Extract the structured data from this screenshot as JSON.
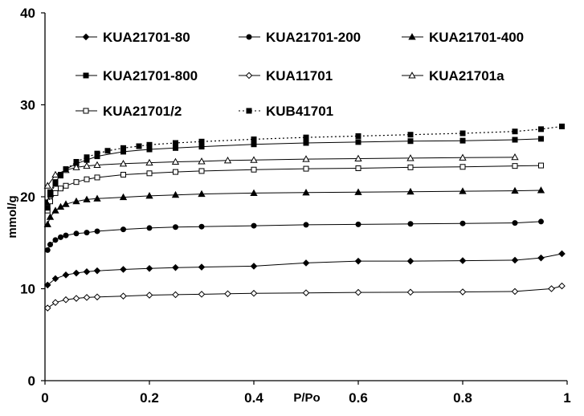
{
  "chart_data": {
    "type": "line",
    "title": "",
    "xlabel": "P/Po",
    "ylabel": "mmol/g",
    "xlim": [
      0,
      1
    ],
    "ylim": [
      0,
      40
    ],
    "x_ticks": [
      0,
      0.2,
      0.4,
      0.6,
      0.8,
      1
    ],
    "y_ticks": [
      0,
      10,
      20,
      30,
      40
    ],
    "x_tick_labels": [
      "0",
      "0.2",
      "0.4",
      "0.6",
      "0.8",
      "1"
    ],
    "y_tick_labels": [
      "0",
      "10",
      "20",
      "30",
      "40"
    ],
    "grid": false,
    "legend_position": "top",
    "series": [
      {
        "name": "KUA21701-80",
        "marker": "diamond-filled",
        "dash": "solid",
        "points": [
          [
            0.005,
            10.4
          ],
          [
            0.02,
            11.1
          ],
          [
            0.04,
            11.5
          ],
          [
            0.06,
            11.7
          ],
          [
            0.08,
            11.85
          ],
          [
            0.1,
            11.95
          ],
          [
            0.15,
            12.1
          ],
          [
            0.2,
            12.2
          ],
          [
            0.25,
            12.3
          ],
          [
            0.3,
            12.35
          ],
          [
            0.4,
            12.45
          ],
          [
            0.5,
            12.8
          ],
          [
            0.6,
            13.0
          ],
          [
            0.7,
            13.0
          ],
          [
            0.8,
            13.05
          ],
          [
            0.9,
            13.1
          ],
          [
            0.95,
            13.35
          ],
          [
            0.99,
            13.8
          ]
        ]
      },
      {
        "name": "KUA21701-200",
        "marker": "circle-filled",
        "dash": "solid",
        "points": [
          [
            0.005,
            14.2
          ],
          [
            0.01,
            14.8
          ],
          [
            0.02,
            15.3
          ],
          [
            0.03,
            15.6
          ],
          [
            0.04,
            15.8
          ],
          [
            0.06,
            16.0
          ],
          [
            0.08,
            16.1
          ],
          [
            0.1,
            16.25
          ],
          [
            0.15,
            16.45
          ],
          [
            0.2,
            16.6
          ],
          [
            0.25,
            16.7
          ],
          [
            0.3,
            16.75
          ],
          [
            0.4,
            16.85
          ],
          [
            0.5,
            16.95
          ],
          [
            0.6,
            17.0
          ],
          [
            0.7,
            17.05
          ],
          [
            0.8,
            17.1
          ],
          [
            0.9,
            17.15
          ],
          [
            0.95,
            17.3
          ]
        ]
      },
      {
        "name": "KUA21701-400",
        "marker": "triangle-filled",
        "dash": "solid",
        "points": [
          [
            0.005,
            17.0
          ],
          [
            0.01,
            17.8
          ],
          [
            0.02,
            18.5
          ],
          [
            0.03,
            18.9
          ],
          [
            0.04,
            19.2
          ],
          [
            0.06,
            19.5
          ],
          [
            0.08,
            19.7
          ],
          [
            0.1,
            19.8
          ],
          [
            0.15,
            19.95
          ],
          [
            0.2,
            20.1
          ],
          [
            0.25,
            20.2
          ],
          [
            0.3,
            20.3
          ],
          [
            0.4,
            20.4
          ],
          [
            0.5,
            20.45
          ],
          [
            0.6,
            20.5
          ],
          [
            0.7,
            20.55
          ],
          [
            0.8,
            20.6
          ],
          [
            0.9,
            20.65
          ],
          [
            0.95,
            20.7
          ]
        ]
      },
      {
        "name": "KUA21701-800",
        "marker": "square-filled",
        "dash": "solid",
        "points": [
          [
            0.005,
            19.4
          ],
          [
            0.01,
            20.5
          ],
          [
            0.02,
            21.6
          ],
          [
            0.03,
            22.4
          ],
          [
            0.04,
            23.0
          ],
          [
            0.06,
            23.6
          ],
          [
            0.08,
            24.0
          ],
          [
            0.1,
            24.4
          ],
          [
            0.15,
            24.9
          ],
          [
            0.2,
            25.15
          ],
          [
            0.25,
            25.3
          ],
          [
            0.3,
            25.45
          ],
          [
            0.4,
            25.7
          ],
          [
            0.5,
            25.85
          ],
          [
            0.6,
            25.95
          ],
          [
            0.7,
            26.05
          ],
          [
            0.8,
            26.1
          ],
          [
            0.9,
            26.2
          ],
          [
            0.95,
            26.3
          ]
        ]
      },
      {
        "name": "KUA11701",
        "marker": "diamond-open",
        "dash": "solid",
        "points": [
          [
            0.005,
            7.9
          ],
          [
            0.02,
            8.5
          ],
          [
            0.04,
            8.8
          ],
          [
            0.06,
            8.95
          ],
          [
            0.08,
            9.05
          ],
          [
            0.1,
            9.1
          ],
          [
            0.15,
            9.2
          ],
          [
            0.2,
            9.3
          ],
          [
            0.25,
            9.35
          ],
          [
            0.3,
            9.4
          ],
          [
            0.35,
            9.45
          ],
          [
            0.4,
            9.5
          ],
          [
            0.5,
            9.55
          ],
          [
            0.6,
            9.6
          ],
          [
            0.7,
            9.62
          ],
          [
            0.8,
            9.65
          ],
          [
            0.9,
            9.7
          ],
          [
            0.97,
            10.0
          ],
          [
            0.99,
            10.3
          ]
        ]
      },
      {
        "name": "KUA21701a",
        "marker": "triangle-open",
        "dash": "solid",
        "points": [
          [
            0.005,
            21.2
          ],
          [
            0.02,
            22.4
          ],
          [
            0.04,
            22.9
          ],
          [
            0.06,
            23.2
          ],
          [
            0.08,
            23.35
          ],
          [
            0.1,
            23.45
          ],
          [
            0.15,
            23.6
          ],
          [
            0.2,
            23.7
          ],
          [
            0.25,
            23.8
          ],
          [
            0.3,
            23.85
          ],
          [
            0.35,
            23.95
          ],
          [
            0.4,
            24.0
          ],
          [
            0.5,
            24.1
          ],
          [
            0.6,
            24.15
          ],
          [
            0.7,
            24.2
          ],
          [
            0.8,
            24.25
          ],
          [
            0.9,
            24.3
          ]
        ]
      },
      {
        "name": "KUA21701/2",
        "marker": "square-open",
        "dash": "solid",
        "points": [
          [
            0.005,
            18.5
          ],
          [
            0.01,
            19.5
          ],
          [
            0.02,
            20.4
          ],
          [
            0.03,
            20.9
          ],
          [
            0.04,
            21.2
          ],
          [
            0.06,
            21.6
          ],
          [
            0.08,
            21.9
          ],
          [
            0.1,
            22.1
          ],
          [
            0.15,
            22.4
          ],
          [
            0.2,
            22.55
          ],
          [
            0.25,
            22.7
          ],
          [
            0.3,
            22.8
          ],
          [
            0.4,
            22.95
          ],
          [
            0.5,
            23.05
          ],
          [
            0.6,
            23.1
          ],
          [
            0.7,
            23.2
          ],
          [
            0.8,
            23.25
          ],
          [
            0.9,
            23.35
          ],
          [
            0.95,
            23.4
          ]
        ]
      },
      {
        "name": "KUB41701",
        "marker": "square-filled",
        "dash": "dotted",
        "points": [
          [
            0.005,
            18.8
          ],
          [
            0.01,
            20.2
          ],
          [
            0.02,
            21.4
          ],
          [
            0.03,
            22.3
          ],
          [
            0.04,
            23.0
          ],
          [
            0.06,
            23.8
          ],
          [
            0.08,
            24.3
          ],
          [
            0.1,
            24.7
          ],
          [
            0.12,
            25.0
          ],
          [
            0.15,
            25.3
          ],
          [
            0.18,
            25.5
          ],
          [
            0.2,
            25.65
          ],
          [
            0.25,
            25.85
          ],
          [
            0.3,
            26.0
          ],
          [
            0.4,
            26.25
          ],
          [
            0.5,
            26.45
          ],
          [
            0.6,
            26.6
          ],
          [
            0.7,
            26.75
          ],
          [
            0.8,
            26.9
          ],
          [
            0.9,
            27.1
          ],
          [
            0.95,
            27.35
          ],
          [
            0.99,
            27.65
          ]
        ]
      }
    ]
  }
}
